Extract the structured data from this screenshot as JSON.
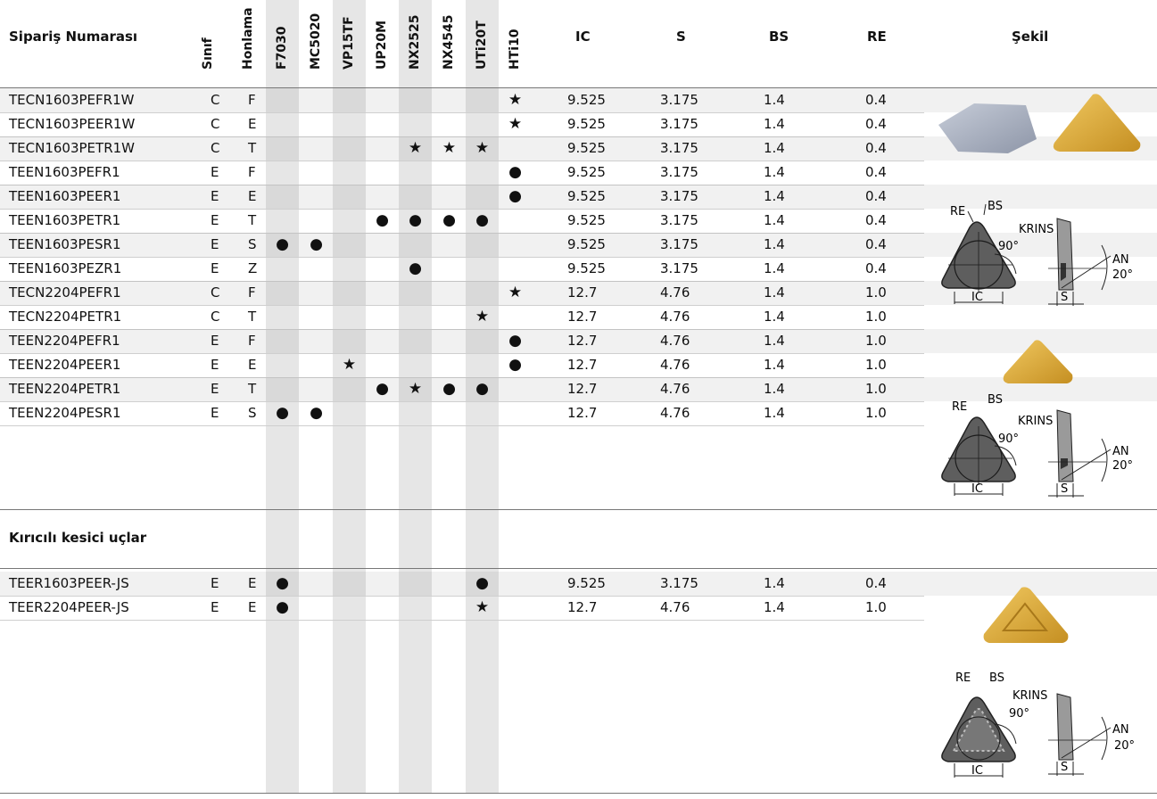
{
  "headers": {
    "order": "Sipariş Numarası",
    "grade_class": "Sınıf",
    "honing": "Honlama",
    "grades": [
      "F7030",
      "MC5020",
      "VP15TF",
      "UP20M",
      "NX2525",
      "NX4545",
      "UTi20T",
      "HTi10"
    ],
    "ic": "IC",
    "s": "S",
    "bs": "BS",
    "re": "RE",
    "shape": "Şekil"
  },
  "rows": [
    {
      "order": "TECN1603PEFR1W",
      "class": "C",
      "hon": "F",
      "marks": [
        "",
        "",
        "",
        "",
        "",
        "",
        "",
        "★"
      ],
      "ic": "9.525",
      "s": "3.175",
      "bs": "1.4",
      "re": "0.4"
    },
    {
      "order": "TECN1603PEER1W",
      "class": "C",
      "hon": "E",
      "marks": [
        "",
        "",
        "",
        "",
        "",
        "",
        "",
        "★"
      ],
      "ic": "9.525",
      "s": "3.175",
      "bs": "1.4",
      "re": "0.4"
    },
    {
      "order": "TECN1603PETR1W",
      "class": "C",
      "hon": "T",
      "marks": [
        "",
        "",
        "",
        "",
        "★",
        "★",
        "★",
        ""
      ],
      "ic": "9.525",
      "s": "3.175",
      "bs": "1.4",
      "re": "0.4"
    },
    {
      "order": "TEEN1603PEFR1",
      "class": "E",
      "hon": "F",
      "marks": [
        "",
        "",
        "",
        "",
        "",
        "",
        "",
        "●"
      ],
      "ic": "9.525",
      "s": "3.175",
      "bs": "1.4",
      "re": "0.4"
    },
    {
      "order": "TEEN1603PEER1",
      "class": "E",
      "hon": "E",
      "marks": [
        "",
        "",
        "",
        "",
        "",
        "",
        "",
        "●"
      ],
      "ic": "9.525",
      "s": "3.175",
      "bs": "1.4",
      "re": "0.4"
    },
    {
      "order": "TEEN1603PETR1",
      "class": "E",
      "hon": "T",
      "marks": [
        "",
        "",
        "",
        "●",
        "●",
        "●",
        "●",
        ""
      ],
      "ic": "9.525",
      "s": "3.175",
      "bs": "1.4",
      "re": "0.4"
    },
    {
      "order": "TEEN1603PESR1",
      "class": "E",
      "hon": "S",
      "marks": [
        "●",
        "●",
        "",
        "",
        "",
        "",
        "",
        ""
      ],
      "ic": "9.525",
      "s": "3.175",
      "bs": "1.4",
      "re": "0.4"
    },
    {
      "order": "TEEN1603PEZR1",
      "class": "E",
      "hon": "Z",
      "marks": [
        "",
        "",
        "",
        "",
        "●",
        "",
        "",
        ""
      ],
      "ic": "9.525",
      "s": "3.175",
      "bs": "1.4",
      "re": "0.4"
    },
    {
      "order": "TECN2204PEFR1",
      "class": "C",
      "hon": "F",
      "marks": [
        "",
        "",
        "",
        "",
        "",
        "",
        "",
        "★"
      ],
      "ic": "12.7",
      "s": "4.76",
      "bs": "1.4",
      "re": "1.0"
    },
    {
      "order": "TECN2204PETR1",
      "class": "C",
      "hon": "T",
      "marks": [
        "",
        "",
        "",
        "",
        "",
        "",
        "★",
        ""
      ],
      "ic": "12.7",
      "s": "4.76",
      "bs": "1.4",
      "re": "1.0"
    },
    {
      "order": "TEEN2204PEFR1",
      "class": "E",
      "hon": "F",
      "marks": [
        "",
        "",
        "",
        "",
        "",
        "",
        "",
        "●"
      ],
      "ic": "12.7",
      "s": "4.76",
      "bs": "1.4",
      "re": "1.0"
    },
    {
      "order": "TEEN2204PEER1",
      "class": "E",
      "hon": "E",
      "marks": [
        "",
        "",
        "★",
        "",
        "",
        "",
        "",
        "●"
      ],
      "ic": "12.7",
      "s": "4.76",
      "bs": "1.4",
      "re": "1.0"
    },
    {
      "order": "TEEN2204PETR1",
      "class": "E",
      "hon": "T",
      "marks": [
        "",
        "",
        "",
        "●",
        "★",
        "●",
        "●",
        ""
      ],
      "ic": "12.7",
      "s": "4.76",
      "bs": "1.4",
      "re": "1.0"
    },
    {
      "order": "TEEN2204PESR1",
      "class": "E",
      "hon": "S",
      "marks": [
        "●",
        "●",
        "",
        "",
        "",
        "",
        "",
        ""
      ],
      "ic": "12.7",
      "s": "4.76",
      "bs": "1.4",
      "re": "1.0"
    }
  ],
  "section_title": "Kırıcılı kesici uçlar",
  "rows2": [
    {
      "order": "TEER1603PEER-JS",
      "class": "E",
      "hon": "E",
      "marks": [
        "●",
        "",
        "",
        "",
        "",
        "",
        "●",
        ""
      ],
      "ic": "9.525",
      "s": "3.175",
      "bs": "1.4",
      "re": "0.4"
    },
    {
      "order": "TEER2204PEER-JS",
      "class": "E",
      "hon": "E",
      "marks": [
        "●",
        "",
        "",
        "",
        "",
        "",
        "★",
        ""
      ],
      "ic": "12.7",
      "s": "4.76",
      "bs": "1.4",
      "re": "1.0"
    }
  ],
  "diagram_labels": {
    "re": "RE",
    "bs": "BS",
    "krins": "KRINS",
    "deg90": "90°",
    "an": "AN",
    "deg20": "20°",
    "ic": "IC",
    "s": "S"
  },
  "colors": {
    "column_shade": "#e6e6e6",
    "insert_gold": "#e0ad3a",
    "insert_silver": "#a7aebc",
    "insert_dark": "#5a5a5a"
  }
}
